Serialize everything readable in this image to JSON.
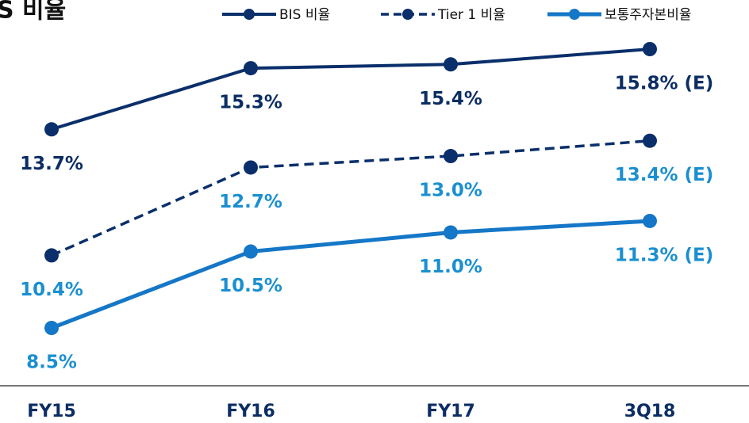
{
  "chart_data": {
    "type": "line",
    "title": "S 비율",
    "categories": [
      "FY15",
      "FY16",
      "FY17",
      "3Q18"
    ],
    "series": [
      {
        "name": "BIS 비율",
        "color": "#0a2f6b",
        "label_color": "#0b2d63",
        "dash": false,
        "width": 4,
        "values": [
          13.7,
          15.3,
          15.4,
          15.8
        ],
        "value_labels": [
          "13.7%",
          "15.3%",
          "15.4%",
          "15.8% (E)"
        ]
      },
      {
        "name": "Tier 1 비율",
        "color": "#0a2f6b",
        "label_color": "#1a8fd0",
        "dash": true,
        "width": 3.5,
        "values": [
          10.4,
          12.7,
          13.0,
          13.4
        ],
        "value_labels": [
          "10.4%",
          "12.7%",
          "13.0%",
          "13.4% (E)"
        ]
      },
      {
        "name": "보통주자본비율",
        "color": "#1577c7",
        "label_color": "#1a8fd0",
        "dash": false,
        "width": 5,
        "values": [
          8.5,
          10.5,
          11.0,
          11.3
        ],
        "value_labels": [
          "8.5%",
          "10.5%",
          "11.0%",
          "11.3% (E)"
        ]
      }
    ]
  }
}
